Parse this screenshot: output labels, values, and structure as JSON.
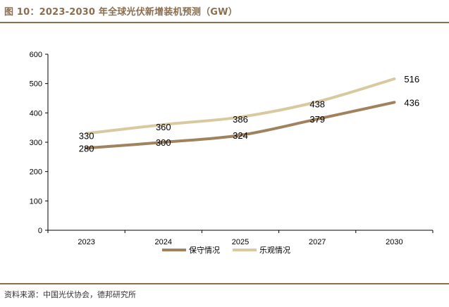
{
  "header": {
    "title": "图 10：2023-2030 年全球光伏新增装机预测（GW）"
  },
  "footer": {
    "source": "资料来源：中国光伏协会，德邦研究所"
  },
  "chart_data": {
    "type": "line",
    "title": "图 10：2023-2030 年全球光伏新增装机预测（GW）",
    "categories": [
      "2023",
      "2024",
      "2025",
      "2027",
      "2030"
    ],
    "ylim": [
      0,
      600
    ],
    "yticks": [
      0,
      100,
      200,
      300,
      400,
      500,
      600
    ],
    "xlabel": "",
    "ylabel": "",
    "grid": false,
    "legend_position": "bottom",
    "series": [
      {
        "name": "保守情况",
        "values": [
          280,
          300,
          324,
          379,
          436
        ],
        "color": "#A0825F"
      },
      {
        "name": "乐观情况",
        "values": [
          330,
          360,
          386,
          438,
          516
        ],
        "color": "#D9C9A0"
      }
    ]
  }
}
